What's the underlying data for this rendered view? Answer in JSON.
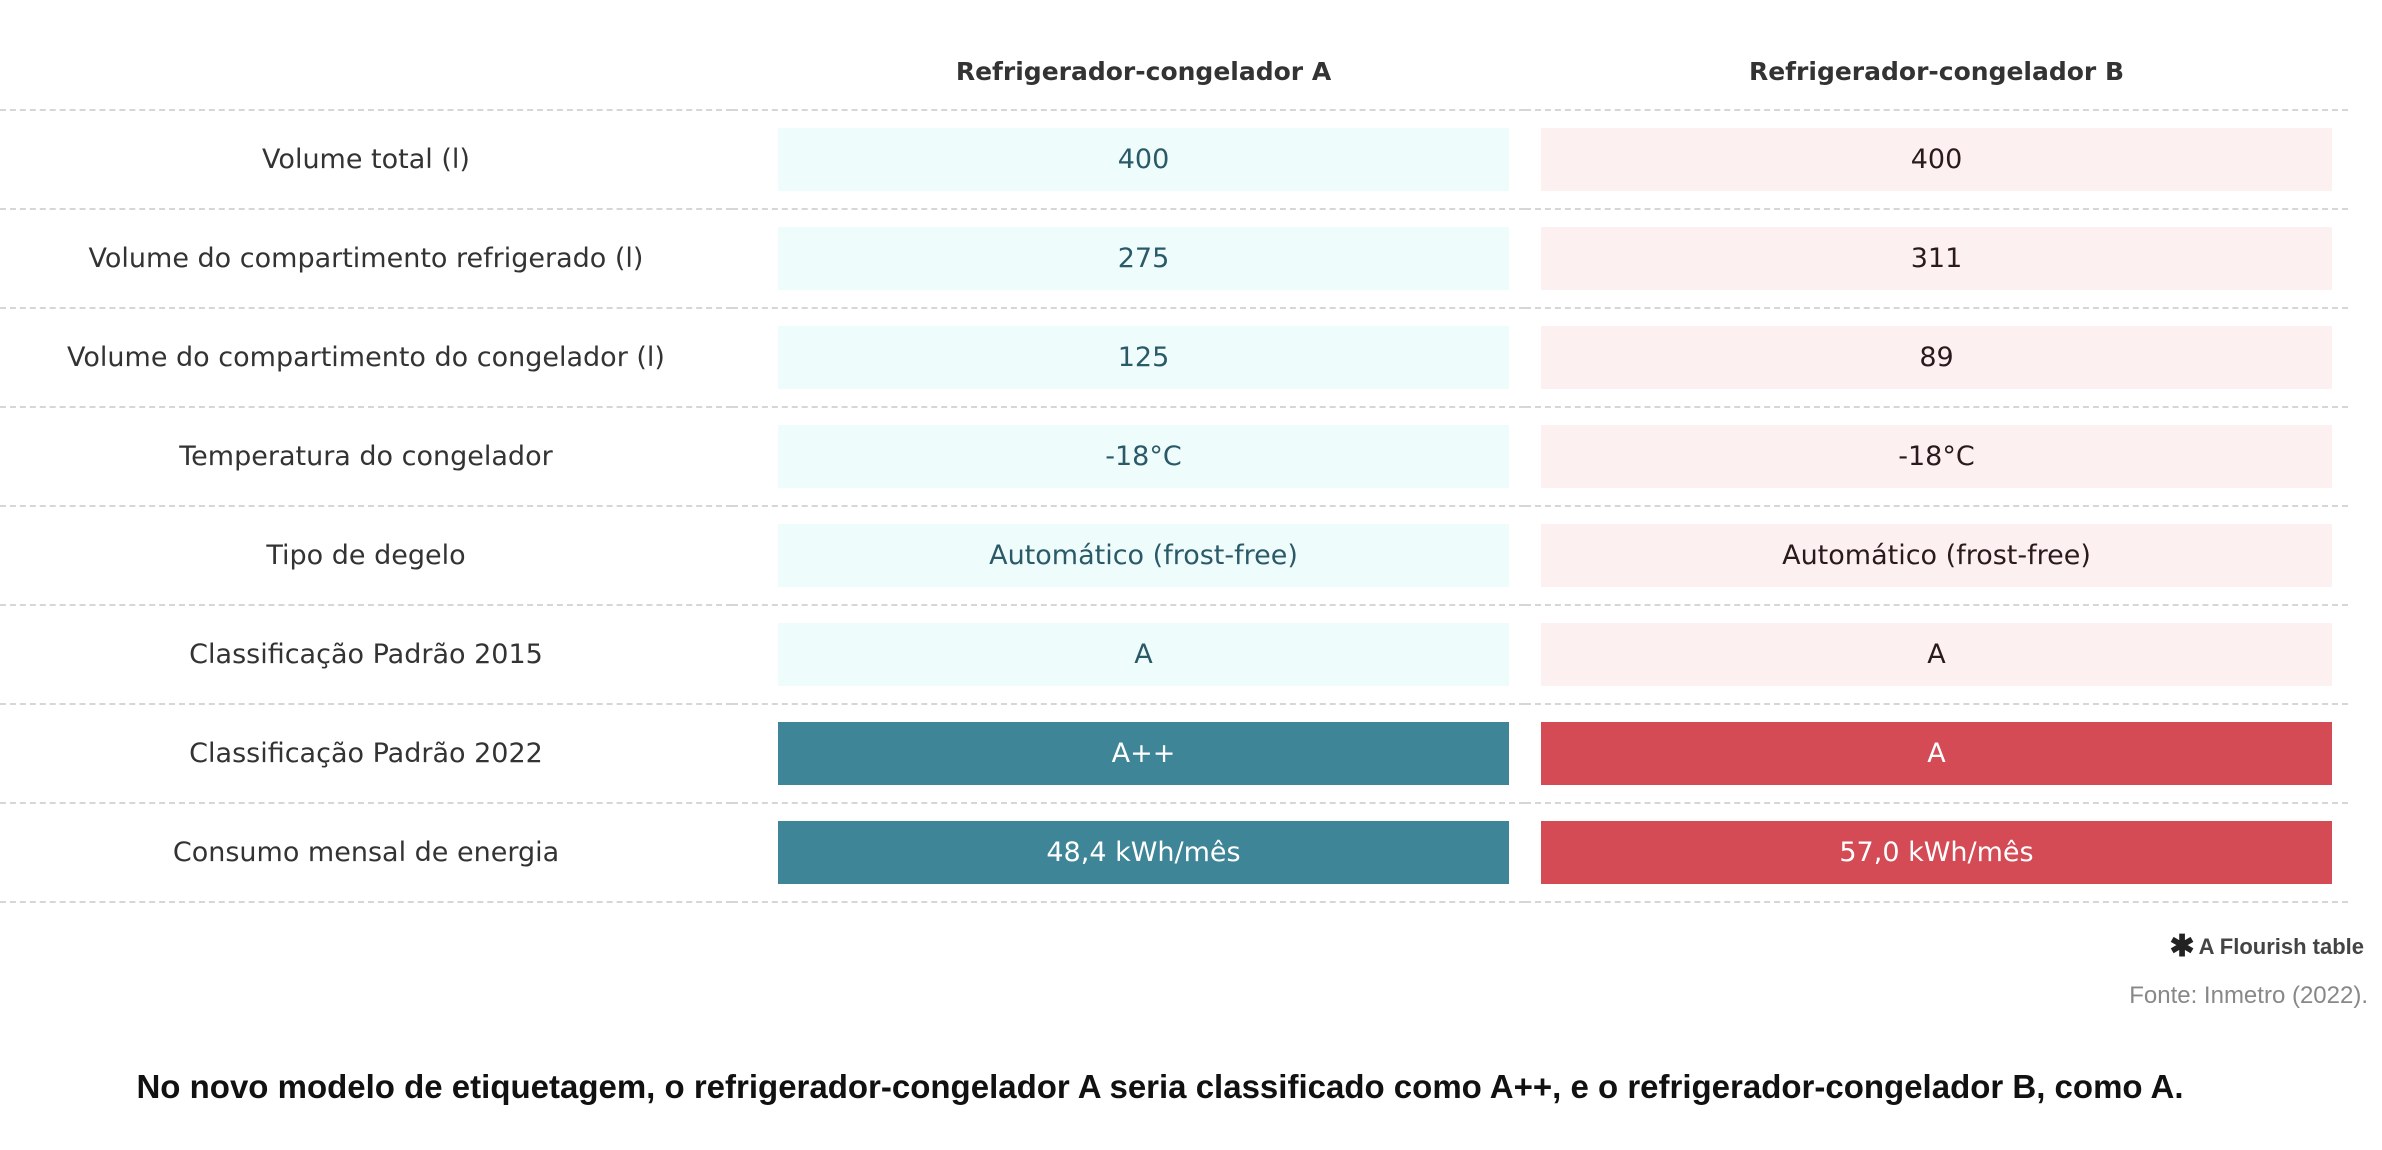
{
  "chart_data": {
    "type": "table",
    "columns": [
      "",
      "Refrigerador-congelador A",
      "Refrigerador-congelador B"
    ],
    "rows": [
      {
        "label": "Volume total (l)",
        "a": "400",
        "b": "400",
        "highlight": false
      },
      {
        "label": "Volume do compartimento refrigerado (l)",
        "a": "275",
        "b": "311",
        "highlight": false
      },
      {
        "label": "Volume do compartimento do congelador (l)",
        "a": "125",
        "b": "89",
        "highlight": false
      },
      {
        "label": "Temperatura do congelador",
        "a": "-18°C",
        "b": "-18°C",
        "highlight": false
      },
      {
        "label": "Tipo de degelo",
        "a": "Automático (frost-free)",
        "b": "Automático (frost-free)",
        "highlight": false
      },
      {
        "label": "Classificação Padrão 2015",
        "a": "A",
        "b": "A",
        "highlight": false
      },
      {
        "label": "Classificação Padrão 2022",
        "a": "A++",
        "b": "A",
        "highlight": true
      },
      {
        "label": "Consumo mensal de energia",
        "a": "48,4 kWh/mês",
        "b": "57,0 kWh/mês",
        "highlight": true
      }
    ],
    "colors": {
      "a_light": "#effcfc",
      "b_light": "#fdf0f1",
      "a_strong": "#3d8597",
      "b_strong": "#d44a55"
    }
  },
  "credit": {
    "icon": "asterisk-icon",
    "text": "A Flourish table"
  },
  "source": "Fonte: Inmetro (2022).",
  "caption": "No novo modelo de etiquetagem, o refrigerador-congelador A seria classificado como A++, e o refrigerador-congelador B, como A."
}
